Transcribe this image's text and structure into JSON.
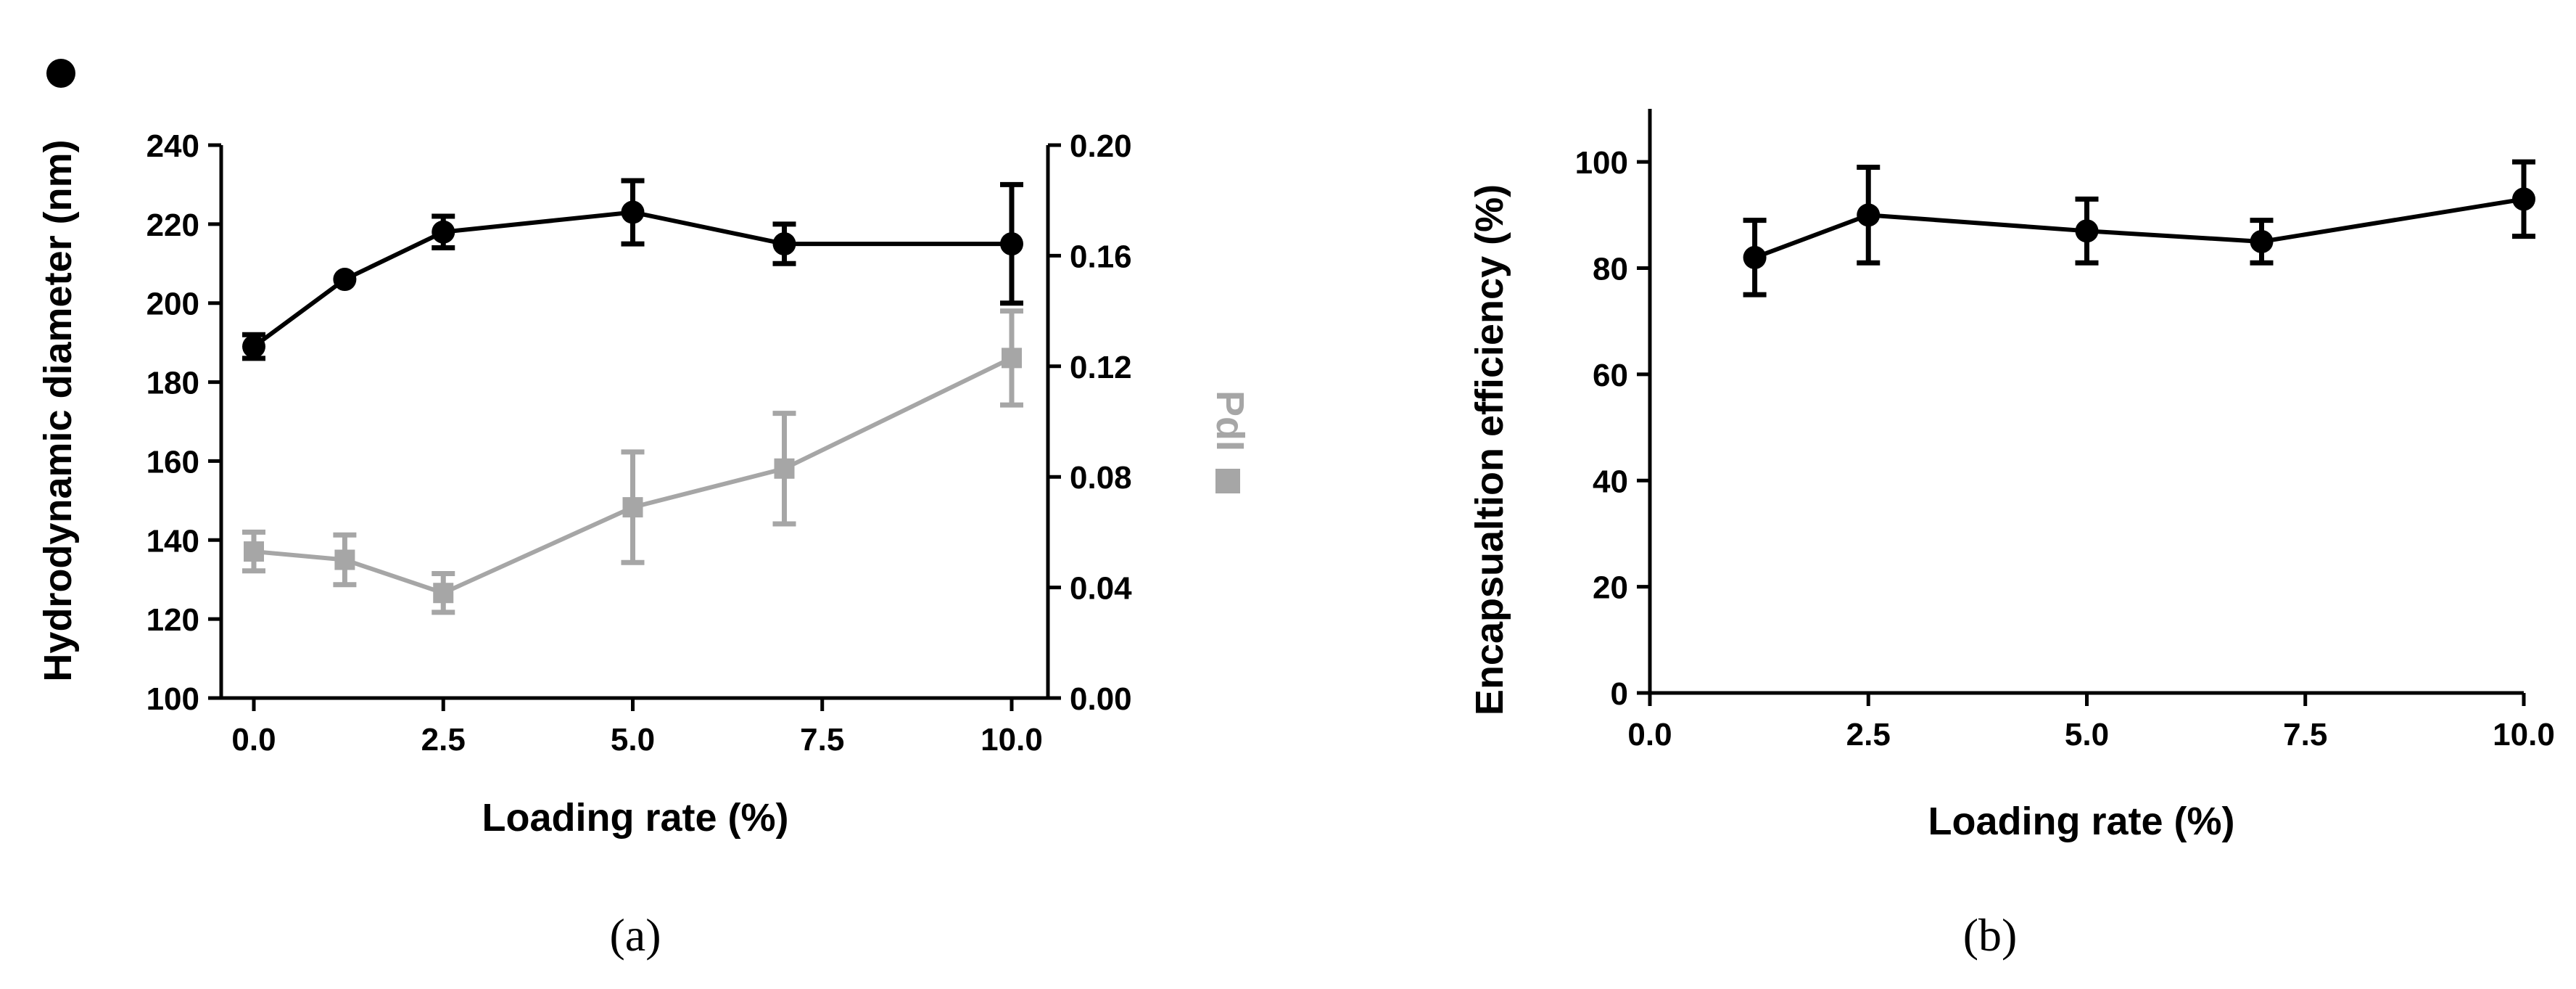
{
  "panels": [
    {
      "label": "(a)",
      "xlabel": "Loading rate (%)",
      "ylabel": "Hydrodynamic diameter (nm)",
      "y2label": "PdI"
    },
    {
      "label": "(b)",
      "xlabel": "Loading rate (%)",
      "ylabel": "Encapsualtion efficiency (%)"
    }
  ],
  "colors": {
    "series_a": "#000000",
    "series_b": "#a6a6a6"
  },
  "chart_data": [
    {
      "type": "line",
      "title": "",
      "xlabel": "Loading rate (%)",
      "ylabel": "Hydrodynamic diameter (nm)",
      "y2label": "PdI",
      "xlim": [
        0,
        10
      ],
      "xticks": [
        "0.0",
        "2.5",
        "5.0",
        "7.5",
        "10.0"
      ],
      "ylim": [
        100,
        240
      ],
      "yticks": [
        "100",
        "120",
        "140",
        "160",
        "180",
        "200",
        "220",
        "240"
      ],
      "y2lim": [
        0,
        0.2
      ],
      "y2ticks": [
        "0.00",
        "0.04",
        "0.08",
        "0.12",
        "0.16",
        "0.20"
      ],
      "grid": false,
      "series": [
        {
          "axis": "left",
          "marker": "circle",
          "color": "#000000",
          "x": [
            0,
            1.2,
            2.5,
            5,
            7,
            10
          ],
          "y": [
            189,
            206,
            218,
            223,
            215,
            215
          ],
          "err": [
            3,
            0,
            4,
            8,
            5,
            15
          ]
        },
        {
          "axis": "right",
          "marker": "square",
          "color": "#a6a6a6",
          "x": [
            0,
            1.2,
            2.5,
            5,
            7,
            10
          ],
          "y": [
            0.053,
            0.05,
            0.038,
            0.069,
            0.083,
            0.123
          ],
          "err": [
            0.007,
            0.009,
            0.007,
            0.02,
            0.02,
            0.017
          ]
        }
      ]
    },
    {
      "type": "line",
      "title": "",
      "xlabel": "Loading rate (%)",
      "ylabel": "Encapsualtion efficiency (%)",
      "xlim": [
        0,
        10
      ],
      "xticks": [
        "0.0",
        "2.5",
        "5.0",
        "7.5",
        "10.0"
      ],
      "ylim": [
        0,
        110
      ],
      "yticks": [
        "0",
        "20",
        "40",
        "60",
        "80",
        "100"
      ],
      "grid": false,
      "series": [
        {
          "marker": "circle",
          "color": "#000000",
          "x": [
            1.2,
            2.5,
            5,
            7,
            10
          ],
          "y": [
            82,
            90,
            87,
            85,
            93
          ],
          "err": [
            7,
            9,
            6,
            4,
            7
          ]
        }
      ]
    }
  ]
}
